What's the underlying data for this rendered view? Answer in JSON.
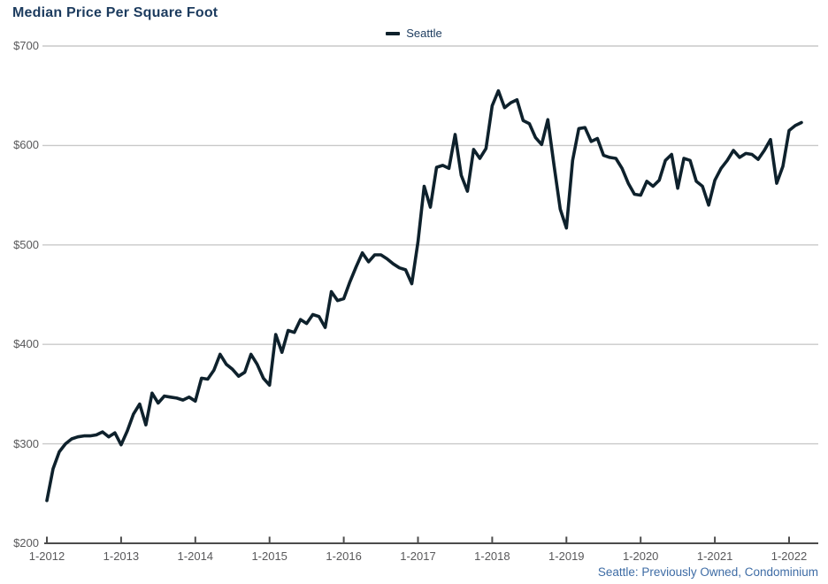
{
  "title": "Median Price Per Square Foot",
  "legend": {
    "label": "Seattle"
  },
  "source_note": "Seattle: Previously Owned, Condominium",
  "colors": {
    "line": "#0e212c",
    "title_text": "#1c3b5e",
    "legend_text": "#1c3b5e",
    "tick_text": "#58585a",
    "gridline": "#c9c9c9",
    "axis": "#4c4c4c",
    "source_text": "#3e6ca5",
    "background": "#ffffff"
  },
  "chart_data": {
    "type": "line",
    "title": "Median Price Per Square Foot",
    "xlabel": "",
    "ylabel": "",
    "ylim": [
      200,
      700
    ],
    "grid": "horizontal",
    "legend_position": "top-center",
    "x_start_month": "1-2012",
    "points_per_month": 1,
    "x_tick_labels": [
      "1-2012",
      "1-2013",
      "1-2014",
      "1-2015",
      "1-2016",
      "1-2017",
      "1-2018",
      "1-2019",
      "1-2020",
      "1-2021",
      "1-2022"
    ],
    "y_tick_labels": [
      "$200",
      "$300",
      "$400",
      "$500",
      "$600",
      "$700"
    ],
    "series": [
      {
        "name": "Seattle",
        "values": [
          243,
          275,
          292,
          300,
          305,
          307,
          308,
          308,
          309,
          312,
          307,
          311,
          299,
          313,
          330,
          340,
          319,
          351,
          341,
          348,
          347,
          346,
          344,
          347,
          343,
          366,
          365,
          374,
          390,
          380,
          375,
          368,
          372,
          390,
          380,
          366,
          359,
          410,
          392,
          414,
          412,
          425,
          421,
          430,
          428,
          417,
          453,
          444,
          446,
          463,
          478,
          492,
          483,
          490,
          490,
          486,
          481,
          477,
          475,
          461,
          503,
          559,
          538,
          578,
          580,
          577,
          611,
          570,
          554,
          596,
          587,
          597,
          640,
          655,
          638,
          643,
          646,
          625,
          622,
          608,
          601,
          626,
          580,
          536,
          517,
          585,
          617,
          618,
          604,
          607,
          590,
          588,
          587,
          577,
          562,
          551,
          550,
          564,
          559,
          565,
          585,
          591,
          557,
          587,
          585,
          564,
          559,
          540,
          565,
          577,
          585,
          595,
          588,
          592,
          591,
          586,
          595,
          606,
          562,
          579,
          615,
          620,
          623
        ]
      }
    ],
    "footnote": "Seattle: Previously Owned, Condominium"
  }
}
